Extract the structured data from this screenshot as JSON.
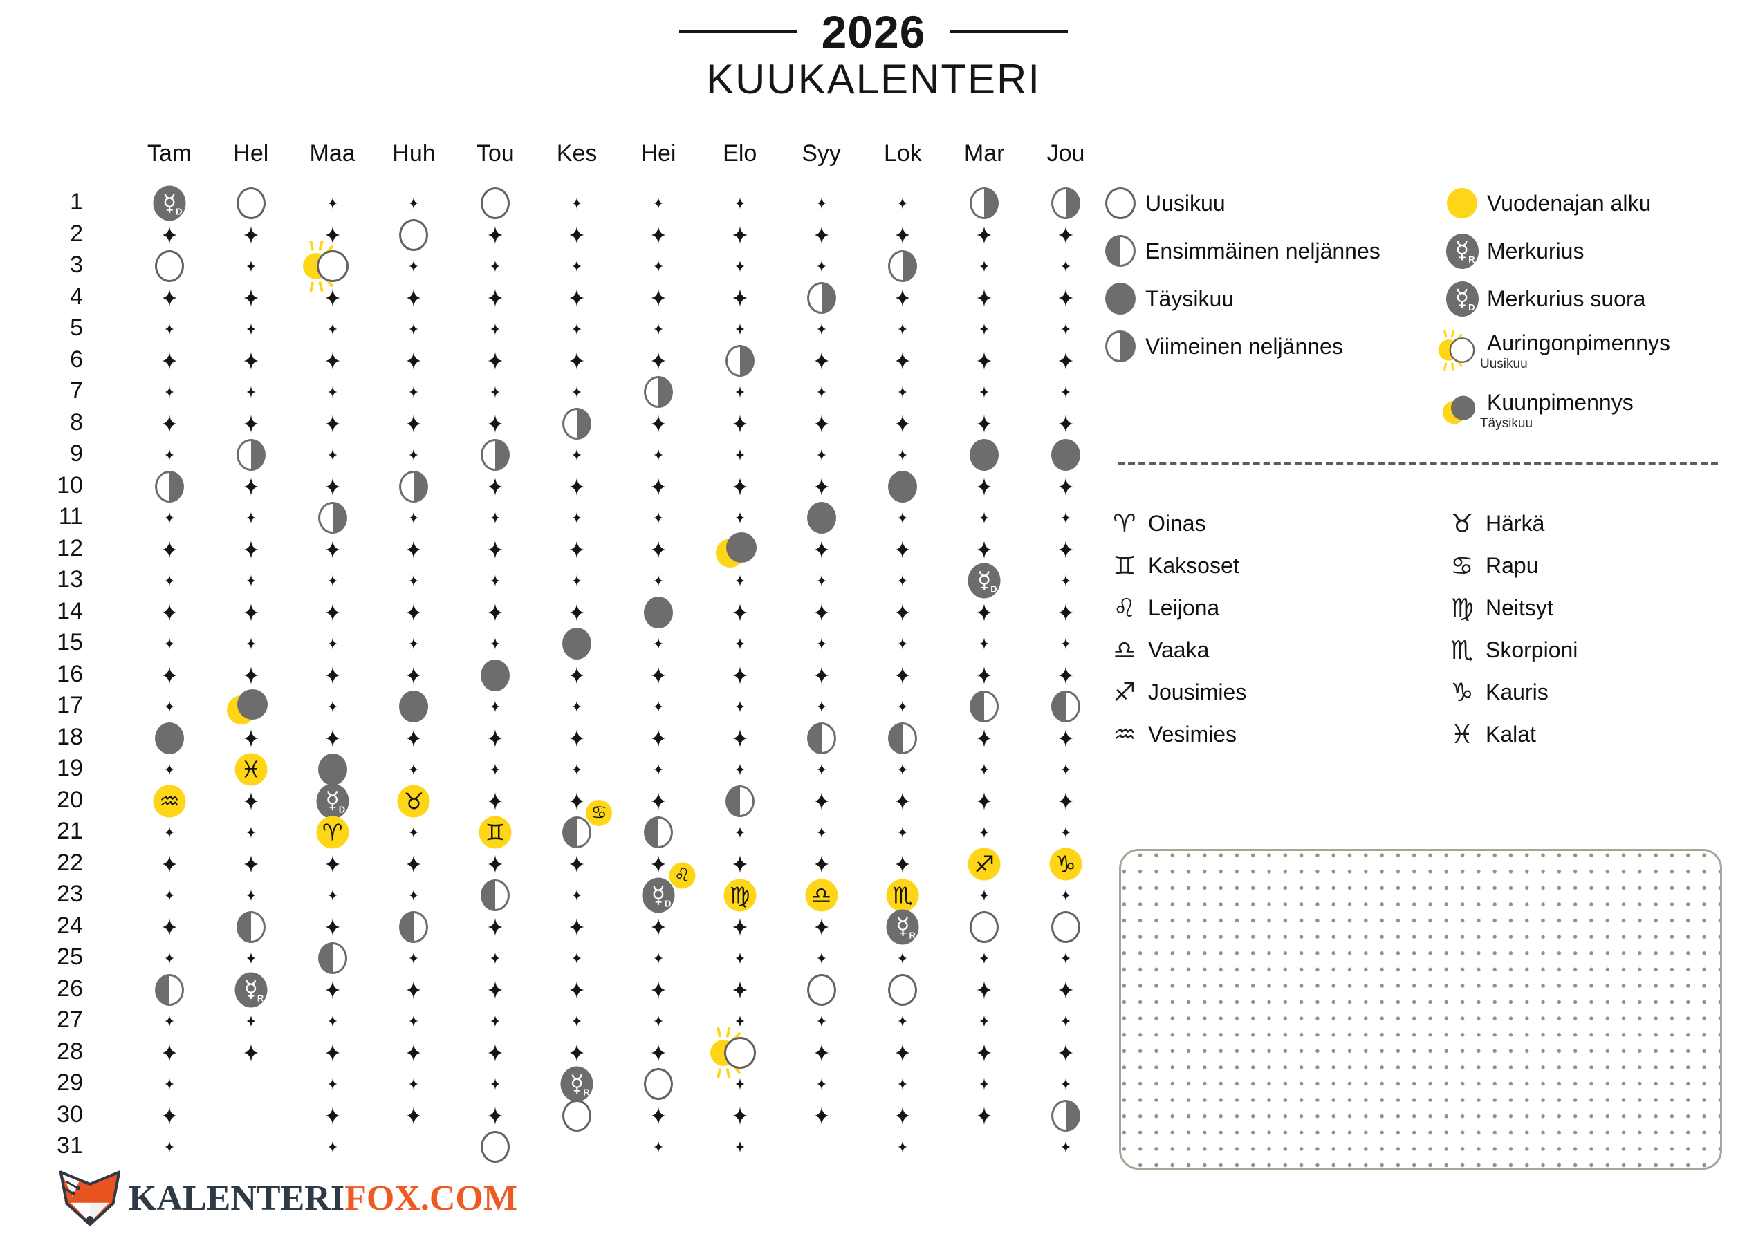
{
  "title": {
    "year": "2026",
    "subtitle": "KUUKALENTERI"
  },
  "colors": {
    "accent_yellow": "#FFD617",
    "moon_gray": "#6D6D6D",
    "star_black": "#151515",
    "logo_dark": "#2E3A45",
    "logo_orange": "#EE5A22"
  },
  "calendar": {
    "row_numbers_min": 1,
    "row_numbers_max": 31,
    "months": [
      {
        "abbr": "Tam",
        "days": 31,
        "events": {
          "1": {
            "t": "mercury",
            "letter": "D"
          },
          "3": {
            "t": "new"
          },
          "10": {
            "t": "lq"
          },
          "18": {
            "t": "full"
          },
          "20": {
            "t": "zodiac",
            "glyph": "♒",
            "name": "vesimies"
          },
          "26": {
            "t": "fq"
          }
        }
      },
      {
        "abbr": "Hel",
        "days": 28,
        "events": {
          "1": {
            "t": "new"
          },
          "9": {
            "t": "lq"
          },
          "17": {
            "t": "lunar_eclipse"
          },
          "19": {
            "t": "zodiac",
            "glyph": "♓",
            "name": "kalat"
          },
          "24": {
            "t": "fq"
          },
          "26": {
            "t": "mercury",
            "letter": "R"
          }
        }
      },
      {
        "abbr": "Maa",
        "days": 31,
        "events": {
          "3": {
            "t": "solar_eclipse"
          },
          "11": {
            "t": "lq"
          },
          "19": {
            "t": "full"
          },
          "20": {
            "t": "mercury",
            "letter": "D"
          },
          "21": {
            "t": "zodiac",
            "glyph": "♈",
            "name": "oinas"
          },
          "25": {
            "t": "fq"
          }
        }
      },
      {
        "abbr": "Huh",
        "days": 30,
        "events": {
          "2": {
            "t": "new"
          },
          "10": {
            "t": "lq"
          },
          "17": {
            "t": "full"
          },
          "20": {
            "t": "zodiac",
            "glyph": "♉",
            "name": "härkä"
          },
          "24": {
            "t": "fq"
          }
        }
      },
      {
        "abbr": "Tou",
        "days": 31,
        "events": {
          "1": {
            "t": "new"
          },
          "9": {
            "t": "lq"
          },
          "16": {
            "t": "full"
          },
          "21": {
            "t": "zodiac",
            "glyph": "♊",
            "name": "kaksoset"
          },
          "23": {
            "t": "fq"
          },
          "31": {
            "t": "new"
          }
        }
      },
      {
        "abbr": "Kes",
        "days": 30,
        "events": {
          "8": {
            "t": "lq"
          },
          "15": {
            "t": "full"
          },
          "21": {
            "t": "fq",
            "zodiac": "♋",
            "name": "rapu"
          },
          "29": {
            "t": "mercury",
            "letter": "R"
          },
          "30": {
            "t": "new"
          }
        }
      },
      {
        "abbr": "Hei",
        "days": 31,
        "events": {
          "7": {
            "t": "lq"
          },
          "14": {
            "t": "full"
          },
          "21": {
            "t": "fq"
          },
          "23": {
            "t": "mercury",
            "letter": "D",
            "zodiac": "♌",
            "name": "leijona"
          },
          "29": {
            "t": "new"
          }
        }
      },
      {
        "abbr": "Elo",
        "days": 31,
        "events": {
          "6": {
            "t": "lq"
          },
          "12": {
            "t": "lunar_eclipse"
          },
          "20": {
            "t": "fq"
          },
          "23": {
            "t": "zodiac",
            "glyph": "♍",
            "name": "neitsyt"
          },
          "28": {
            "t": "solar_eclipse"
          }
        }
      },
      {
        "abbr": "Syy",
        "days": 30,
        "events": {
          "4": {
            "t": "lq"
          },
          "11": {
            "t": "full"
          },
          "18": {
            "t": "fq"
          },
          "23": {
            "t": "zodiac",
            "glyph": "♎",
            "name": "vaaka"
          },
          "26": {
            "t": "new"
          }
        }
      },
      {
        "abbr": "Lok",
        "days": 31,
        "events": {
          "3": {
            "t": "lq"
          },
          "10": {
            "t": "full"
          },
          "18": {
            "t": "fq"
          },
          "23": {
            "t": "zodiac",
            "glyph": "♏",
            "name": "skorpioni"
          },
          "24": {
            "t": "mercury",
            "letter": "R"
          },
          "26": {
            "t": "new"
          }
        }
      },
      {
        "abbr": "Mar",
        "days": 30,
        "events": {
          "1": {
            "t": "lq"
          },
          "9": {
            "t": "full"
          },
          "13": {
            "t": "mercury",
            "letter": "D"
          },
          "17": {
            "t": "fq"
          },
          "22": {
            "t": "zodiac",
            "glyph": "♐",
            "name": "jousimies"
          },
          "24": {
            "t": "new"
          }
        }
      },
      {
        "abbr": "Jou",
        "days": 31,
        "events": {
          "1": {
            "t": "lq"
          },
          "9": {
            "t": "full"
          },
          "17": {
            "t": "fq"
          },
          "22": {
            "t": "zodiac",
            "glyph": "♑",
            "name": "kauris"
          },
          "24": {
            "t": "new"
          },
          "30": {
            "t": "lq"
          }
        }
      }
    ]
  },
  "legend": {
    "phases": [
      {
        "icon": "new",
        "label": "Uusikuu"
      },
      {
        "icon": "fq",
        "label": "Ensimmäinen neljännes"
      },
      {
        "icon": "full",
        "label": "Täysikuu"
      },
      {
        "icon": "lq",
        "label": "Viimeinen neljännes"
      }
    ],
    "extras": [
      {
        "icon": "season",
        "label": "Vuodenajan alku",
        "sub": ""
      },
      {
        "icon": "mercury_R",
        "label": "Merkurius",
        "sub": "",
        "letter": "R"
      },
      {
        "icon": "mercury_D",
        "label": "Merkurius suora",
        "sub": "",
        "letter": "D"
      },
      {
        "icon": "solar_eclipse",
        "label": "Auringonpimennys",
        "sub": "Uusikuu"
      },
      {
        "icon": "lunar_eclipse",
        "label": "Kuunpimennys",
        "sub": "Täysikuu"
      }
    ]
  },
  "zodiac_legend": {
    "left": [
      {
        "glyph": "♈",
        "label": "Oinas"
      },
      {
        "glyph": "♊",
        "label": "Kaksoset"
      },
      {
        "glyph": "♌",
        "label": "Leijona"
      },
      {
        "glyph": "♎",
        "label": "Vaaka"
      },
      {
        "glyph": "♐",
        "label": "Jousimies"
      },
      {
        "glyph": "♒",
        "label": "Vesimies"
      }
    ],
    "right": [
      {
        "glyph": "♉",
        "label": "Härkä"
      },
      {
        "glyph": "♋",
        "label": "Rapu"
      },
      {
        "glyph": "♍",
        "label": "Neitsyt"
      },
      {
        "glyph": "♏",
        "label": "Skorpioni"
      },
      {
        "glyph": "♑",
        "label": "Kauris"
      },
      {
        "glyph": "♓",
        "label": "Kalat"
      }
    ]
  },
  "logo": {
    "text_dark": "KALENTERI",
    "text_orange": "FOX.COM"
  }
}
